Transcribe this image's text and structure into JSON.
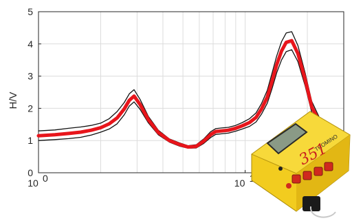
{
  "chart_data": {
    "type": "line",
    "title": "",
    "xlabel": "",
    "ylabel": "H/V",
    "xscale": "log",
    "xlim": [
      1,
      30
    ],
    "ylim": [
      0,
      5
    ],
    "grid": true,
    "x_tick_labels": [
      {
        "value": 1,
        "base": "10",
        "exp": "0"
      },
      {
        "value": 10,
        "base": "10",
        "exp": "1"
      }
    ],
    "y_ticks": [
      0,
      1,
      2,
      3,
      4,
      5
    ],
    "series": [
      {
        "role": "mean",
        "color": "#e8151b",
        "x": [
          1,
          1.2,
          1.4,
          1.6,
          1.8,
          2.0,
          2.2,
          2.4,
          2.6,
          2.75,
          2.9,
          3.1,
          3.4,
          3.8,
          4.3,
          4.8,
          5.3,
          5.8,
          6.3,
          6.8,
          7.2,
          7.7,
          8.3,
          9.0,
          9.7,
          10.5,
          11.3,
          12.0,
          12.8,
          13.5,
          14.2,
          15.0,
          15.8,
          16.8,
          18.0,
          19.5,
          21.0,
          23.0,
          25.0,
          27.0,
          30.0
        ],
        "y": [
          1.15,
          1.18,
          1.22,
          1.26,
          1.32,
          1.4,
          1.52,
          1.7,
          1.98,
          2.25,
          2.38,
          2.12,
          1.65,
          1.25,
          1.0,
          0.88,
          0.8,
          0.82,
          0.98,
          1.18,
          1.28,
          1.3,
          1.32,
          1.38,
          1.46,
          1.56,
          1.72,
          1.98,
          2.35,
          2.85,
          3.35,
          3.78,
          4.05,
          4.1,
          3.7,
          2.9,
          2.05,
          1.55,
          1.2,
          1.1,
          1.15
        ]
      },
      {
        "role": "upper bound",
        "color": "#111111",
        "x": [
          1,
          1.2,
          1.4,
          1.6,
          1.8,
          2.0,
          2.2,
          2.4,
          2.6,
          2.75,
          2.9,
          3.1,
          3.4,
          3.8,
          4.3,
          4.8,
          5.3,
          5.8,
          6.3,
          6.8,
          7.2,
          7.7,
          8.3,
          9.0,
          9.7,
          10.5,
          11.3,
          12.0,
          12.8,
          13.5,
          14.2,
          15.0,
          15.8,
          16.8,
          18.0,
          19.5,
          21.0,
          23.0,
          25.0,
          27.0,
          30.0
        ],
        "y": [
          1.3,
          1.33,
          1.38,
          1.42,
          1.47,
          1.54,
          1.68,
          1.9,
          2.18,
          2.45,
          2.58,
          2.28,
          1.75,
          1.32,
          1.05,
          0.93,
          0.84,
          0.87,
          1.05,
          1.27,
          1.37,
          1.39,
          1.41,
          1.47,
          1.56,
          1.68,
          1.86,
          2.15,
          2.56,
          3.1,
          3.62,
          4.07,
          4.34,
          4.38,
          3.95,
          3.1,
          2.22,
          1.68,
          1.32,
          1.2,
          1.25
        ]
      },
      {
        "role": "lower bound",
        "color": "#111111",
        "x": [
          1,
          1.2,
          1.4,
          1.6,
          1.8,
          2.0,
          2.2,
          2.4,
          2.6,
          2.75,
          2.9,
          3.1,
          3.4,
          3.8,
          4.3,
          4.8,
          5.3,
          5.8,
          6.3,
          6.8,
          7.2,
          7.7,
          8.3,
          9.0,
          9.7,
          10.5,
          11.3,
          12.0,
          12.8,
          13.5,
          14.2,
          15.0,
          15.8,
          16.8,
          18.0,
          19.5,
          21.0,
          23.0,
          25.0,
          27.0,
          30.0
        ],
        "y": [
          1.0,
          1.03,
          1.06,
          1.1,
          1.17,
          1.26,
          1.36,
          1.52,
          1.8,
          2.07,
          2.2,
          1.97,
          1.55,
          1.18,
          0.95,
          0.83,
          0.76,
          0.77,
          0.91,
          1.09,
          1.19,
          1.21,
          1.23,
          1.29,
          1.36,
          1.44,
          1.58,
          1.82,
          2.16,
          2.62,
          3.1,
          3.5,
          3.76,
          3.82,
          3.45,
          2.7,
          1.88,
          1.42,
          1.09,
          1.0,
          1.05
        ]
      }
    ]
  },
  "instrument_photo": {
    "brand_text": "TROMINO",
    "handwritten_text": "351"
  }
}
